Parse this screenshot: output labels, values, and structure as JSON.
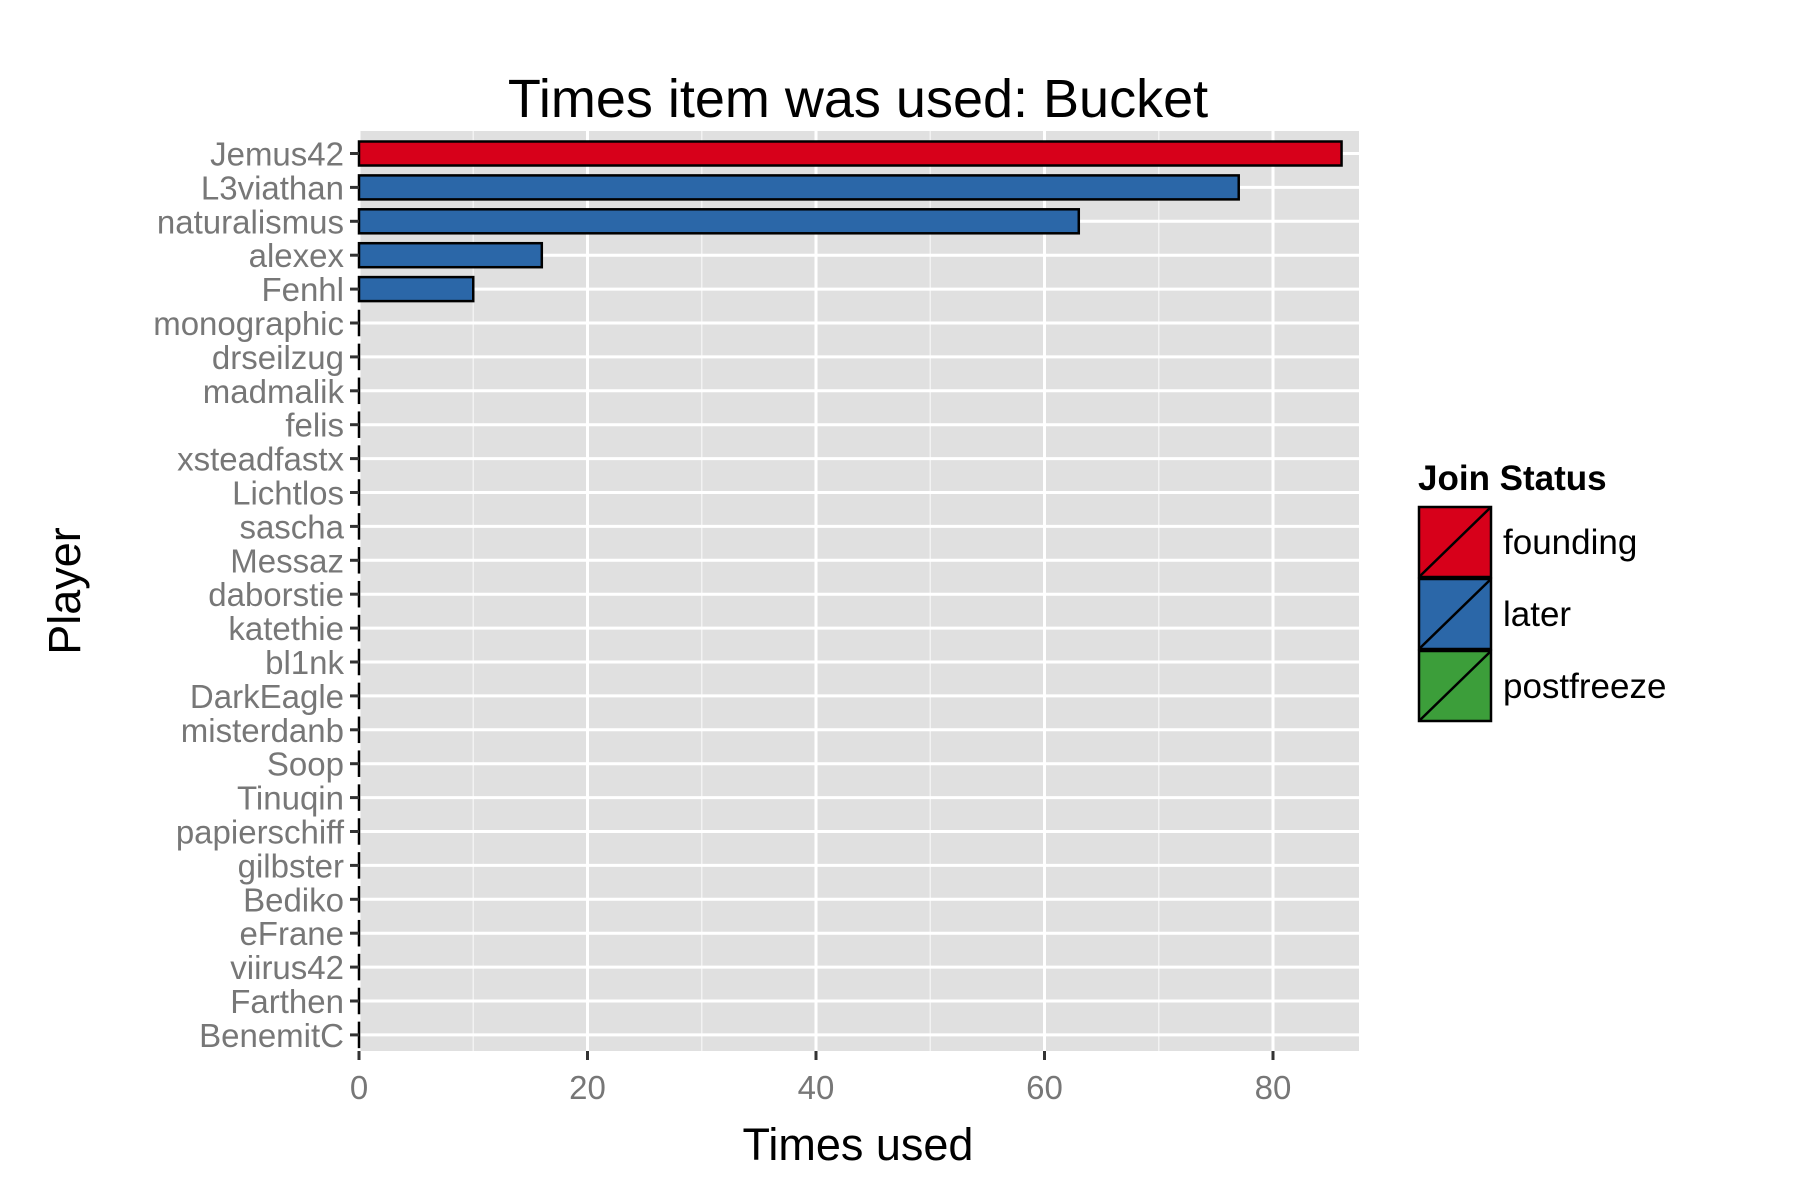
{
  "chart_data": {
    "type": "bar",
    "orientation": "horizontal",
    "title": "Times item was used: Bucket",
    "xlabel": "Times used",
    "ylabel": "Player",
    "xlim": [
      0,
      88
    ],
    "xticks": [
      0,
      20,
      40,
      60,
      80
    ],
    "grid": true,
    "legend_placement": "right",
    "legend_title": "Join Status",
    "legend": [
      {
        "label": "founding",
        "color": "#d7001a"
      },
      {
        "label": "later",
        "color": "#2b67a8"
      },
      {
        "label": "postfreeze",
        "color": "#3c9e3a"
      }
    ],
    "categories": [
      "Jemus42",
      "L3viathan",
      "naturalismus",
      "alexex",
      "Fenhl",
      "monographic",
      "drseilzug",
      "madmalik",
      "felis",
      "xsteadfastx",
      "Lichtlos",
      "sascha",
      "Messaz",
      "daborstie",
      "katethie",
      "bl1nk",
      "DarkEagle",
      "misterdanb",
      "Soop",
      "Tinuqin",
      "papierschiff",
      "gilbster",
      "Bediko",
      "eFrane",
      "viirus42",
      "Farthen",
      "BenemitC"
    ],
    "values": [
      86,
      77,
      63,
      16,
      10,
      0,
      0,
      0,
      0,
      0,
      0,
      0,
      0,
      0,
      0,
      0,
      0,
      0,
      0,
      0,
      0,
      0,
      0,
      0,
      0,
      0,
      0
    ],
    "groups": [
      "founding",
      "later",
      "later",
      "later",
      "later",
      "later",
      "later",
      "later",
      "later",
      "later",
      "later",
      "later",
      "later",
      "later",
      "later",
      "later",
      "later",
      "later",
      "later",
      "later",
      "later",
      "later",
      "later",
      "later",
      "later",
      "later",
      "later"
    ]
  }
}
